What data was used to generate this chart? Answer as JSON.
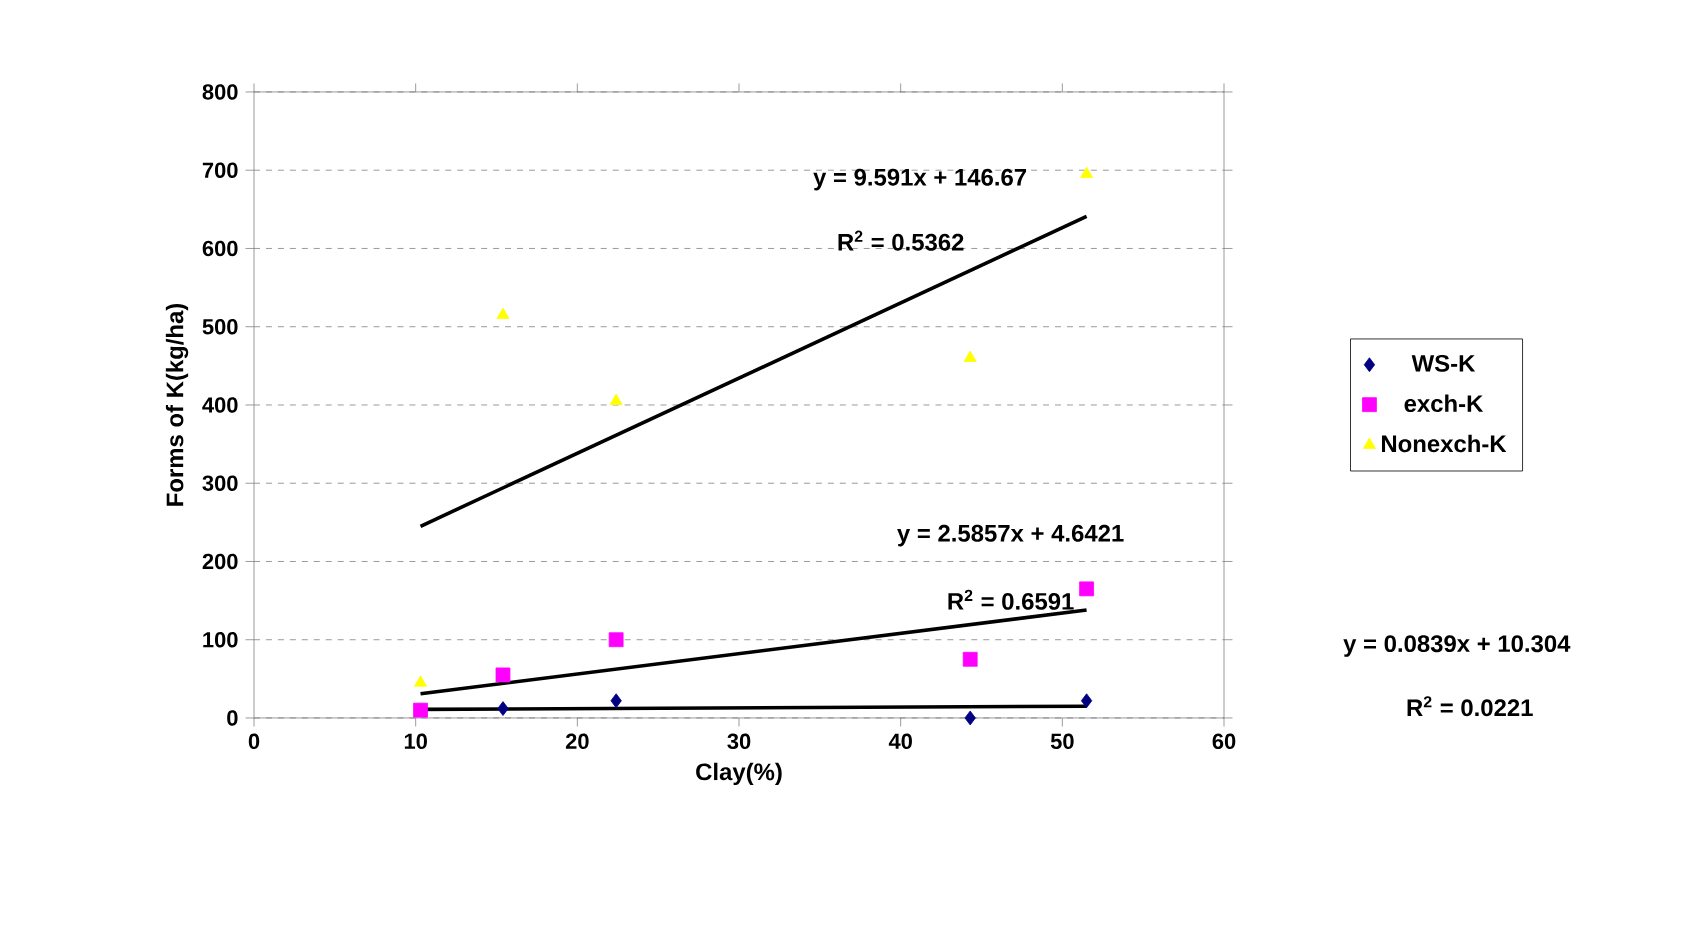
{
  "chart_data": {
    "type": "scatter",
    "xlabel": "Clay(%)",
    "ylabel": "Forms of K(kg/ha)",
    "x": [
      10.3,
      15.4,
      22.4,
      44.3,
      51.5
    ],
    "series": [
      {
        "name": "WS-K",
        "color": "#000080",
        "marker": "diamond",
        "values": [
          null,
          12,
          22,
          0,
          22
        ]
      },
      {
        "name": "exch-K",
        "color": "#ff00ff",
        "marker": "square",
        "values": [
          10,
          55,
          100,
          75,
          165
        ]
      },
      {
        "name": "Nonexch-K",
        "color": "#ffff00",
        "marker": "triangle",
        "values": [
          45,
          515,
          405,
          460,
          695
        ]
      },
      {
        "type": "line",
        "color": "#000000",
        "values": [
          245,
          null,
          null,
          null,
          641
        ]
      },
      {
        "type": "line",
        "color": "#000000",
        "values": [
          31,
          null,
          null,
          null,
          138
        ]
      },
      {
        "type": "line",
        "color": "#000000",
        "values": [
          11,
          null,
          null,
          null,
          15
        ]
      }
    ],
    "xlim": [
      0,
      60
    ],
    "xticks": [
      0,
      10,
      20,
      30,
      40,
      50,
      60
    ],
    "ylim": [
      0,
      800
    ],
    "yticks": [
      0,
      100,
      200,
      300,
      400,
      500,
      600,
      700,
      800
    ],
    "grid": "y",
    "legend": "right",
    "line_style": "solid",
    "annotations": [
      "y = 9.591x + 146.67",
      "R$^{2}$ = 0.5362",
      "y = 2.5857x + 4.6421",
      "R$^{2}$ = 0.6591",
      "y = 0.0839x + 10.304",
      "R$^{2}$ = 0.0221"
    ]
  }
}
